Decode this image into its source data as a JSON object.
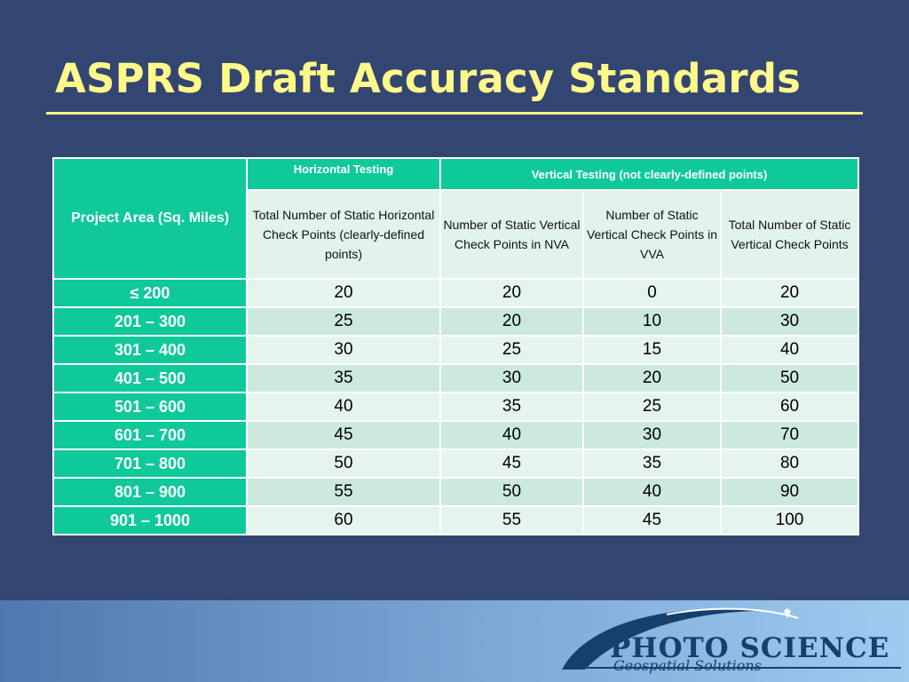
{
  "slide": {
    "title": "ASPRS Draft Accuracy Standards"
  },
  "table": {
    "area_header": "Project Area (Sq. Miles)",
    "horizontal_group": "Horizontal Testing",
    "vertical_group": "Vertical Testing (not clearly-defined points)",
    "sub_headers": [
      "Total Number of Static Horizontal Check Points (clearly-defined points)",
      "Number of Static Vertical Check Points in NVA",
      "Number of Static Vertical Check Points in VVA",
      "Total Number of Static Vertical Check Points"
    ],
    "rows": [
      {
        "area": "≤ 200",
        "values": [
          "20",
          "20",
          "0",
          "20"
        ]
      },
      {
        "area": "201 – 300",
        "values": [
          "25",
          "20",
          "10",
          "30"
        ]
      },
      {
        "area": "301 – 400",
        "values": [
          "30",
          "25",
          "15",
          "40"
        ]
      },
      {
        "area": "401 – 500",
        "values": [
          "35",
          "30",
          "20",
          "50"
        ]
      },
      {
        "area": "501 – 600",
        "values": [
          "40",
          "35",
          "25",
          "60"
        ]
      },
      {
        "area": "601 – 700",
        "values": [
          "45",
          "40",
          "30",
          "70"
        ]
      },
      {
        "area": "701 – 800",
        "values": [
          "50",
          "45",
          "35",
          "80"
        ]
      },
      {
        "area": "801 – 900",
        "values": [
          "55",
          "50",
          "40",
          "90"
        ]
      },
      {
        "area": "901 – 1000",
        "values": [
          "60",
          "55",
          "45",
          "100"
        ]
      }
    ]
  },
  "logo": {
    "name": "PHOTO SCIENCE",
    "tagline": "Geospatial Solutions"
  },
  "colors": {
    "background": "#334672",
    "title": "#FFF98A",
    "accent": "#0FC99A"
  }
}
